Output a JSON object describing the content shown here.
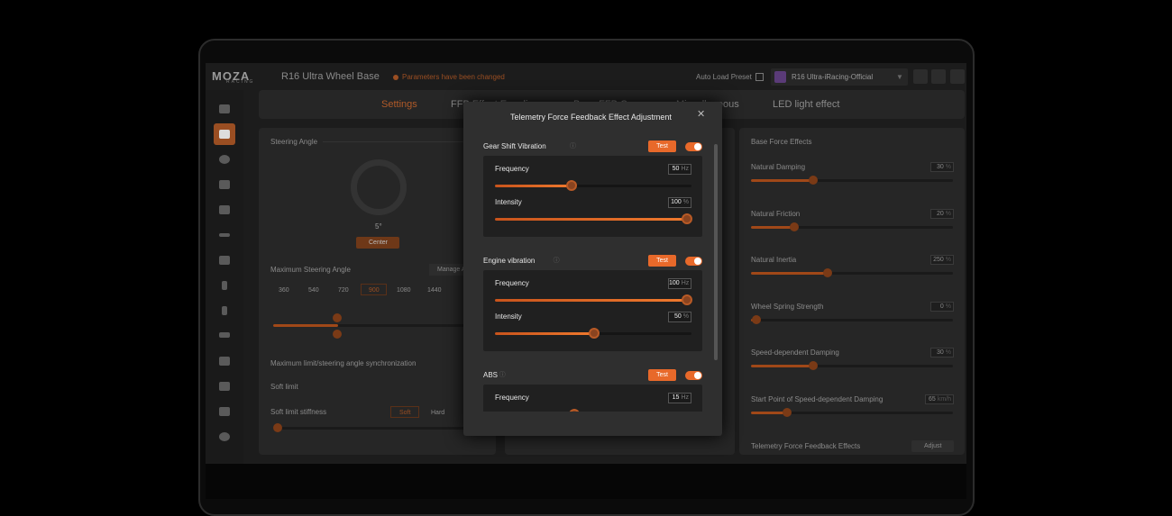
{
  "header": {
    "brand": "MOZA",
    "brand_sub": "RACING",
    "device": "R16 Ultra Wheel Base",
    "status": "Parameters have been changed",
    "auto_load": "Auto Load Preset",
    "preset": "R16 Ultra-iRacing-Official"
  },
  "tabs": [
    "Settings",
    "FFB Effect Equalizer",
    "Base FFB Curve",
    "Miscellaneous",
    "LED light effect"
  ],
  "left_panel": {
    "title": "Steering Angle",
    "angle": "5°",
    "center": "Center",
    "max_angle": "Maximum Steering Angle",
    "manage": "Manage A",
    "angle_options": [
      "360",
      "540",
      "720",
      "900",
      "1080",
      "1440"
    ],
    "sync": "Maximum limit/steering angle synchronization",
    "soft_limit": "Soft limit",
    "stiffness": "Soft limit stiffness",
    "stiffness_options": [
      "Soft",
      "Hard"
    ]
  },
  "right_panel": {
    "title": "Base Force Effects",
    "items": [
      {
        "label": "Natural Damping",
        "value": 30,
        "unit": "%"
      },
      {
        "label": "Natural Friction",
        "value": 20,
        "unit": "%"
      },
      {
        "label": "Natural Inertia",
        "value": 250,
        "unit": "%"
      },
      {
        "label": "Wheel Spring Strength",
        "value": 0,
        "unit": "%"
      },
      {
        "label": "Speed-dependent Damping",
        "value": 30,
        "unit": "%"
      },
      {
        "label": "Start Point of Speed-dependent Damping",
        "value": 65,
        "unit": "km/h"
      }
    ],
    "telemetry": "Telemetry Force Feedback Effects",
    "adjust": "Adjust"
  },
  "modal": {
    "title": "Telemetry Force Feedback Effect Adjustment",
    "sections": [
      {
        "name": "Gear Shift Vibration",
        "test": "Test",
        "params": [
          {
            "label": "Frequency",
            "value": 50,
            "unit": "Hz"
          },
          {
            "label": "Intensity",
            "value": 100,
            "unit": "%"
          }
        ]
      },
      {
        "name": "Engine vibration",
        "test": "Test",
        "params": [
          {
            "label": "Frequency",
            "value": 100,
            "unit": "Hz"
          },
          {
            "label": "Intensity",
            "value": 50,
            "unit": "%"
          }
        ]
      },
      {
        "name": "ABS",
        "test": "Test",
        "params": [
          {
            "label": "Frequency",
            "value": 15,
            "unit": "Hz"
          }
        ]
      }
    ]
  }
}
